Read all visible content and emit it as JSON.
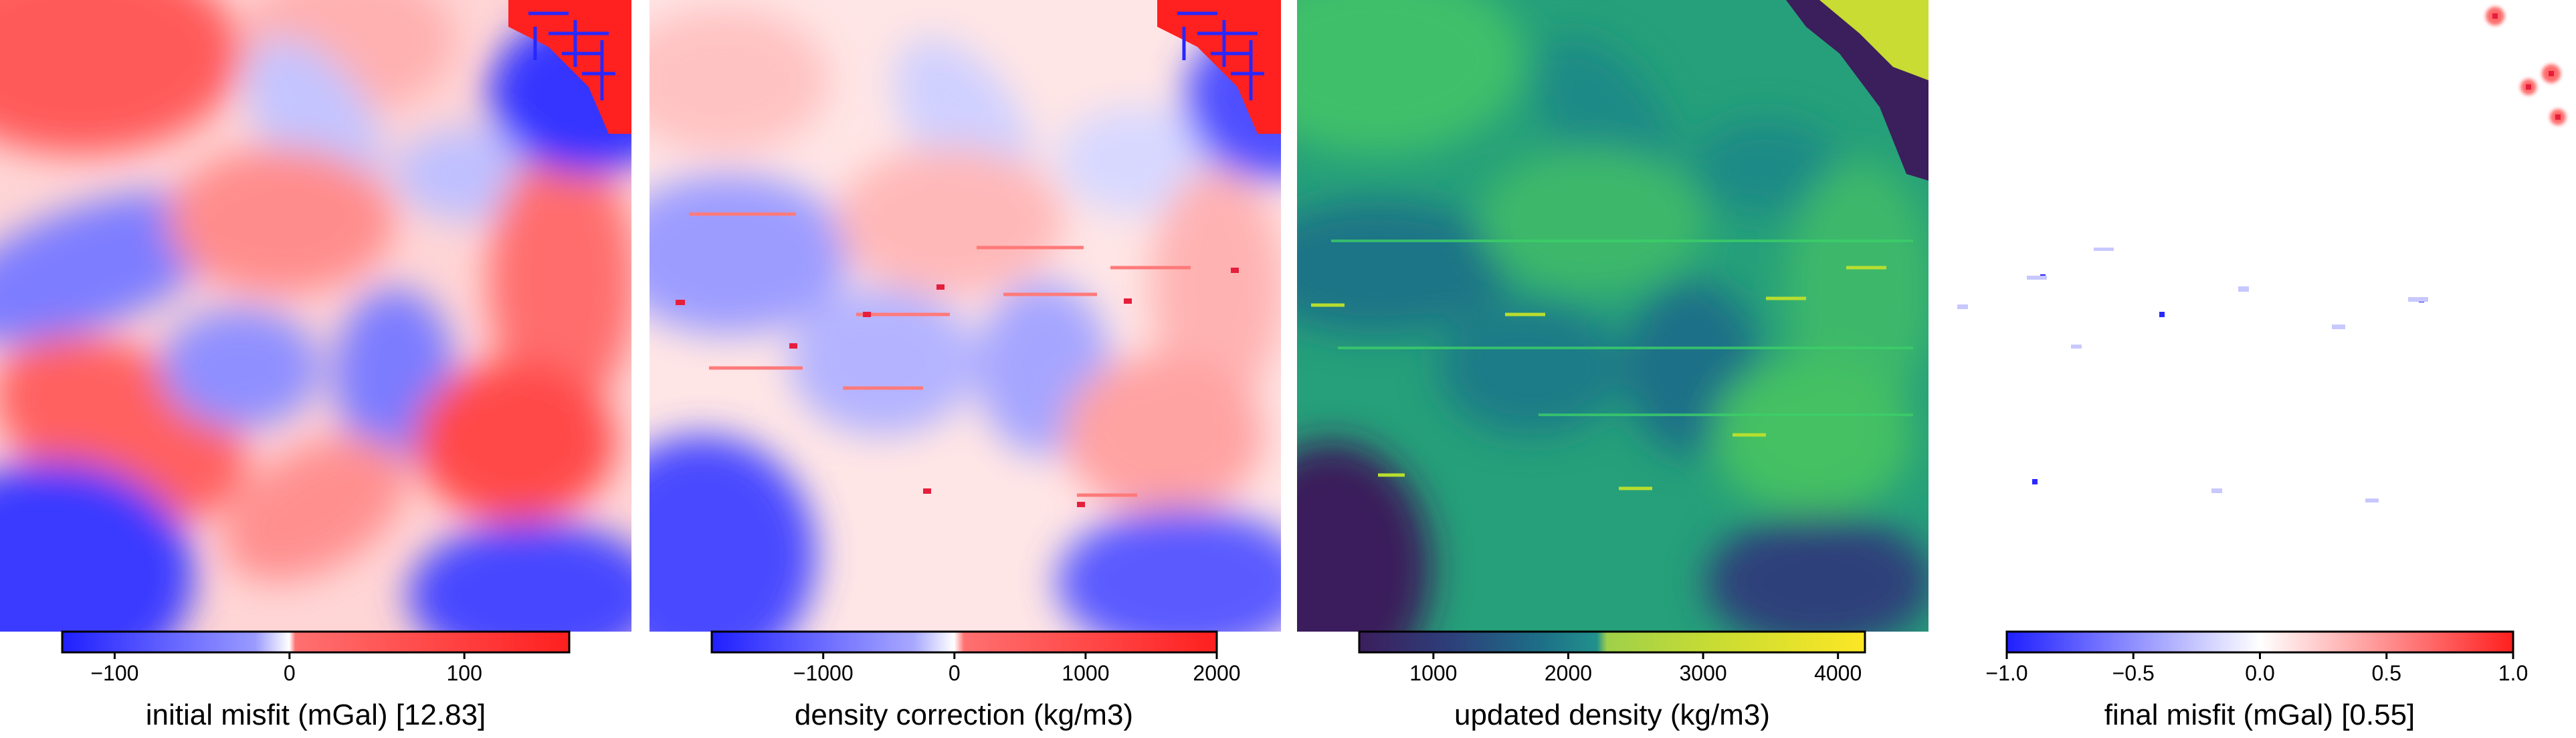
{
  "chart_data": [
    {
      "type": "heatmap",
      "colormap": "blue-white-red",
      "colorbar": {
        "label": "initial misfit (mGal) [12.83]",
        "range": [
          -130,
          160
        ],
        "ticks": [
          {
            "value": -100,
            "label": "−100"
          },
          {
            "value": 0,
            "label": "0"
          },
          {
            "value": 100,
            "label": "100"
          }
        ]
      }
    },
    {
      "type": "heatmap",
      "colormap": "blue-white-red",
      "colorbar": {
        "label": "density correction (kg/m3)",
        "range": [
          -1850,
          2000
        ],
        "ticks": [
          {
            "value": -1000,
            "label": "−1000"
          },
          {
            "value": 0,
            "label": "0"
          },
          {
            "value": 1000,
            "label": "1000"
          },
          {
            "value": 2000,
            "label": "2000"
          }
        ]
      }
    },
    {
      "type": "heatmap",
      "colormap": "viridis",
      "colorbar": {
        "label": "updated density (kg/m3)",
        "range": [
          450,
          4200
        ],
        "ticks": [
          {
            "value": 1000,
            "label": "1000"
          },
          {
            "value": 2000,
            "label": "2000"
          },
          {
            "value": 3000,
            "label": "3000"
          },
          {
            "value": 4000,
            "label": "4000"
          }
        ]
      }
    },
    {
      "type": "heatmap",
      "colormap": "blue-white-red",
      "colorbar": {
        "label": "final misfit (mGal) [0.55]",
        "range": [
          -1.0,
          1.0
        ],
        "ticks": [
          {
            "value": -1.0,
            "label": "−1.0"
          },
          {
            "value": -0.5,
            "label": "−0.5"
          },
          {
            "value": 0.0,
            "label": "0.0"
          },
          {
            "value": 0.5,
            "label": "0.5"
          },
          {
            "value": 1.0,
            "label": "1.0"
          }
        ]
      }
    }
  ],
  "colors": {
    "blue": "#1f1fff",
    "white": "#ffffff",
    "red": "#ff1f1f",
    "viridis_dark": "#3b1e5c",
    "viridis_mid": "#21918c",
    "viridis_green": "#3cb86a",
    "viridis_yellow": "#fde725"
  }
}
